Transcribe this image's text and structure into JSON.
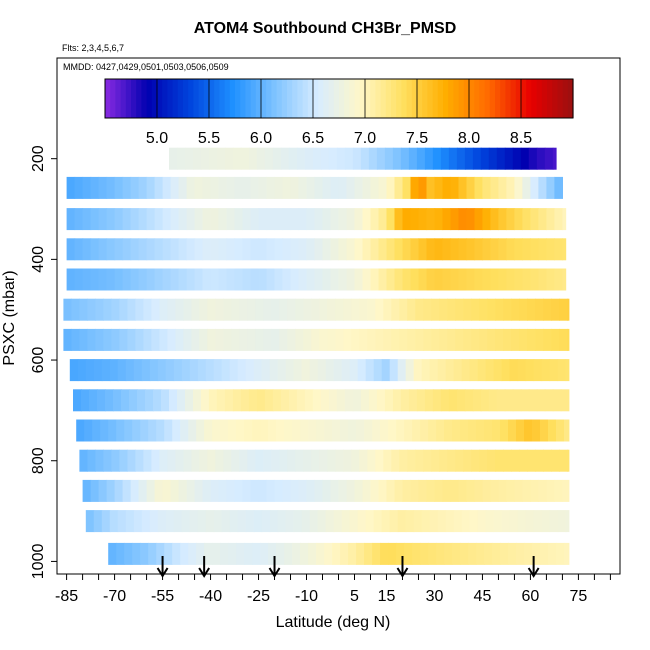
{
  "chart_data": {
    "type": "heatmap",
    "title": "ATOM4 Southbound CH3Br_PMSD",
    "flights_label": "Flts: 2,3,4,5,6,7",
    "mmdd_label": "MMDD: 0427,0429,0501,0503,0506,0509",
    "xlabel": "Latitude (deg N)",
    "ylabel": "PSXC (mbar)",
    "xlim": [
      -88,
      88
    ],
    "ylim": [
      1025,
      0
    ],
    "x_ticks": [
      -85,
      -70,
      -55,
      -40,
      -25,
      -10,
      5,
      15,
      30,
      45,
      60,
      75
    ],
    "x_minor_ticks": [
      -80,
      -75,
      -65,
      -60,
      -50,
      -45,
      -35,
      -30,
      -20,
      -15,
      -5,
      0,
      10,
      20,
      25,
      35,
      40,
      50,
      55,
      65,
      70,
      80,
      85
    ],
    "y_ticks": [
      200,
      400,
      600,
      800,
      1000
    ],
    "colorbar": {
      "range": [
        4.5,
        9.0
      ],
      "ticks": [
        5.0,
        5.5,
        6.0,
        6.5,
        7.0,
        7.5,
        8.0,
        8.5
      ],
      "colors": [
        "#8a2be2",
        "#0000b0",
        "#0044dd",
        "#1e90ff",
        "#7fc3ff",
        "#d7ecff",
        "#fff7c8",
        "#ffe060",
        "#ffae00",
        "#ff6a00",
        "#e80000",
        "#9a1010"
      ]
    },
    "layers": [
      {
        "p": 200,
        "x0": -53,
        "x1": 68,
        "pts": [
          [
            -53,
            6.7
          ],
          [
            -30,
            6.8
          ],
          [
            -10,
            6.6
          ],
          [
            5,
            6.5
          ],
          [
            20,
            6.1
          ],
          [
            35,
            5.6
          ],
          [
            45,
            5.3
          ],
          [
            55,
            5.0
          ],
          [
            62,
            4.8
          ],
          [
            68,
            4.7
          ]
        ]
      },
      {
        "p": 258,
        "x0": -85,
        "x1": 70,
        "pts": [
          [
            -85,
            5.9
          ],
          [
            -70,
            6.1
          ],
          [
            -60,
            6.3
          ],
          [
            -45,
            6.8
          ],
          [
            -30,
            6.7
          ],
          [
            -15,
            6.8
          ],
          [
            0,
            6.6
          ],
          [
            15,
            6.9
          ],
          [
            22,
            7.4
          ],
          [
            25,
            8.1
          ],
          [
            28,
            7.6
          ],
          [
            35,
            7.8
          ],
          [
            45,
            7.3
          ],
          [
            55,
            7.0
          ],
          [
            62,
            6.5
          ],
          [
            70,
            6.0
          ]
        ]
      },
      {
        "p": 320,
        "x0": -85,
        "x1": 71,
        "pts": [
          [
            -85,
            6.0
          ],
          [
            -70,
            6.2
          ],
          [
            -55,
            6.5
          ],
          [
            -40,
            6.8
          ],
          [
            -25,
            6.6
          ],
          [
            -10,
            6.6
          ],
          [
            5,
            6.8
          ],
          [
            15,
            7.2
          ],
          [
            20,
            7.8
          ],
          [
            30,
            7.7
          ],
          [
            40,
            8.0
          ],
          [
            50,
            7.6
          ],
          [
            60,
            7.3
          ],
          [
            71,
            7.0
          ]
        ]
      },
      {
        "p": 380,
        "x0": -85,
        "x1": 71,
        "pts": [
          [
            -85,
            6.0
          ],
          [
            -70,
            6.2
          ],
          [
            -55,
            6.4
          ],
          [
            -40,
            6.6
          ],
          [
            -25,
            6.5
          ],
          [
            -10,
            6.6
          ],
          [
            5,
            6.9
          ],
          [
            20,
            7.4
          ],
          [
            30,
            7.7
          ],
          [
            40,
            7.6
          ],
          [
            55,
            7.4
          ],
          [
            71,
            7.3
          ]
        ]
      },
      {
        "p": 440,
        "x0": -85,
        "x1": 71,
        "pts": [
          [
            -85,
            6.0
          ],
          [
            -70,
            6.1
          ],
          [
            -55,
            6.3
          ],
          [
            -40,
            6.5
          ],
          [
            -25,
            6.4
          ],
          [
            -10,
            6.6
          ],
          [
            5,
            6.8
          ],
          [
            20,
            7.3
          ],
          [
            30,
            7.5
          ],
          [
            45,
            7.4
          ],
          [
            60,
            7.3
          ],
          [
            71,
            7.2
          ]
        ]
      },
      {
        "p": 500,
        "x0": -86,
        "x1": 72,
        "pts": [
          [
            -86,
            6.1
          ],
          [
            -70,
            6.3
          ],
          [
            -55,
            6.6
          ],
          [
            -40,
            6.8
          ],
          [
            -20,
            6.7
          ],
          [
            -5,
            6.8
          ],
          [
            10,
            6.9
          ],
          [
            25,
            7.2
          ],
          [
            40,
            7.3
          ],
          [
            55,
            7.4
          ],
          [
            72,
            7.5
          ]
        ]
      },
      {
        "p": 560,
        "x0": -86,
        "x1": 72,
        "pts": [
          [
            -86,
            6.0
          ],
          [
            -70,
            6.2
          ],
          [
            -55,
            6.5
          ],
          [
            -40,
            6.8
          ],
          [
            -20,
            6.7
          ],
          [
            -5,
            6.9
          ],
          [
            10,
            7.0
          ],
          [
            25,
            7.1
          ],
          [
            40,
            7.2
          ],
          [
            55,
            7.3
          ],
          [
            72,
            7.4
          ]
        ]
      },
      {
        "p": 620,
        "x0": -84,
        "x1": 72,
        "pts": [
          [
            -84,
            5.9
          ],
          [
            -70,
            6.0
          ],
          [
            -55,
            6.2
          ],
          [
            -40,
            6.4
          ],
          [
            -25,
            6.6
          ],
          [
            -10,
            6.8
          ],
          [
            5,
            6.6
          ],
          [
            15,
            6.3
          ],
          [
            25,
            7.0
          ],
          [
            40,
            7.2
          ],
          [
            55,
            7.4
          ],
          [
            72,
            7.3
          ]
        ]
      },
      {
        "p": 680,
        "x0": -83,
        "x1": 72,
        "pts": [
          [
            -83,
            5.9
          ],
          [
            -70,
            6.1
          ],
          [
            -55,
            6.4
          ],
          [
            -40,
            7.0
          ],
          [
            -25,
            7.2
          ],
          [
            -10,
            7.0
          ],
          [
            5,
            6.8
          ],
          [
            20,
            7.1
          ],
          [
            35,
            7.3
          ],
          [
            50,
            7.2
          ],
          [
            72,
            7.2
          ]
        ]
      },
      {
        "p": 740,
        "x0": -82,
        "x1": 72,
        "pts": [
          [
            -82,
            5.9
          ],
          [
            -70,
            6.1
          ],
          [
            -55,
            6.4
          ],
          [
            -40,
            6.9
          ],
          [
            -25,
            7.0
          ],
          [
            -10,
            6.9
          ],
          [
            5,
            6.8
          ],
          [
            20,
            7.0
          ],
          [
            35,
            7.2
          ],
          [
            50,
            7.3
          ],
          [
            60,
            7.6
          ],
          [
            72,
            7.2
          ]
        ]
      },
      {
        "p": 800,
        "x0": -81,
        "x1": 72,
        "pts": [
          [
            -81,
            6.0
          ],
          [
            -70,
            6.2
          ],
          [
            -55,
            6.6
          ],
          [
            -40,
            6.8
          ],
          [
            -25,
            6.6
          ],
          [
            -10,
            6.7
          ],
          [
            5,
            6.8
          ],
          [
            20,
            7.1
          ],
          [
            35,
            7.2
          ],
          [
            50,
            7.3
          ],
          [
            72,
            7.3
          ]
        ]
      },
      {
        "p": 860,
        "x0": -80,
        "x1": 72,
        "pts": [
          [
            -80,
            6.0
          ],
          [
            -70,
            6.3
          ],
          [
            -55,
            6.9
          ],
          [
            -40,
            6.6
          ],
          [
            -25,
            6.5
          ],
          [
            -10,
            6.6
          ],
          [
            5,
            6.8
          ],
          [
            20,
            7.1
          ],
          [
            35,
            7.2
          ],
          [
            50,
            7.1
          ],
          [
            72,
            7.0
          ]
        ]
      },
      {
        "p": 920,
        "x0": -79,
        "x1": 72,
        "pts": [
          [
            -79,
            6.1
          ],
          [
            -70,
            6.4
          ],
          [
            -55,
            6.6
          ],
          [
            -40,
            6.7
          ],
          [
            -25,
            6.6
          ],
          [
            -10,
            6.7
          ],
          [
            5,
            6.9
          ],
          [
            20,
            7.1
          ],
          [
            35,
            7.0
          ],
          [
            50,
            6.9
          ],
          [
            72,
            6.8
          ]
        ]
      },
      {
        "p": 985,
        "x0": -72,
        "x1": 72,
        "pts": [
          [
            -72,
            6.0
          ],
          [
            -60,
            6.2
          ],
          [
            -50,
            6.5
          ],
          [
            -40,
            6.7
          ],
          [
            -25,
            6.6
          ],
          [
            -10,
            6.8
          ],
          [
            5,
            7.1
          ],
          [
            15,
            7.4
          ],
          [
            25,
            7.3
          ],
          [
            40,
            7.2
          ],
          [
            55,
            7.1
          ],
          [
            72,
            7.0
          ]
        ]
      }
    ],
    "flight_arrows": [
      -55,
      -42,
      -20,
      20,
      61
    ]
  }
}
